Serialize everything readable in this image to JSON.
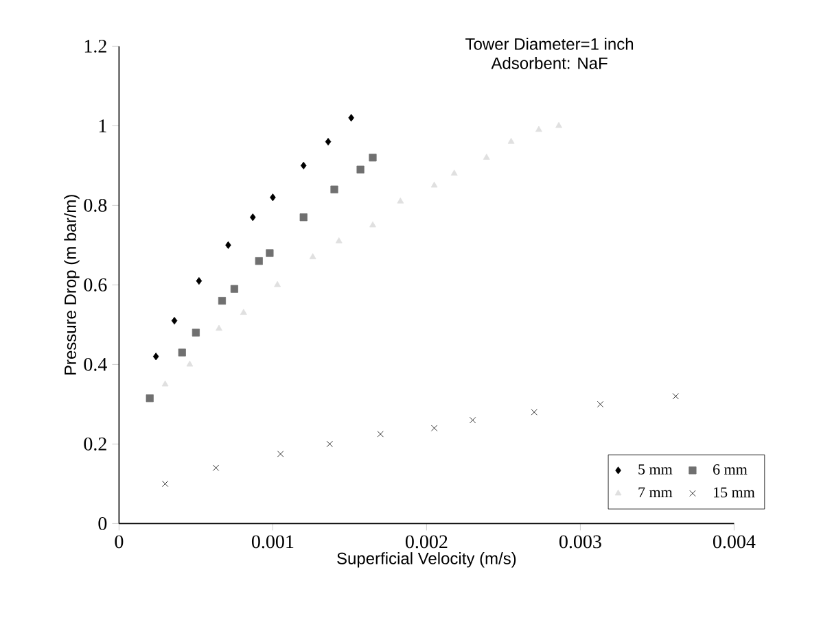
{
  "chart_data": {
    "type": "scatter",
    "title": "Tower Diameter=1 inch",
    "subtitle": "Adsorbent: NaF",
    "xlabel": "Superficial Velocity (m/s)",
    "ylabel": "Pressure Drop (m bar/m)",
    "xlim": [
      0,
      0.004
    ],
    "xticks": [
      0,
      0.001,
      0.002,
      0.003,
      0.004
    ],
    "ylim": [
      0,
      1.2
    ],
    "yticks": [
      0,
      0.2,
      0.4,
      0.6,
      0.8,
      1,
      1.2
    ],
    "grid": false,
    "legend": "bottom right",
    "series": [
      {
        "name": "5 mm",
        "color": "#000000",
        "marker": "diamond",
        "x": [
          0.00024,
          0.00036,
          0.00052,
          0.00071,
          0.00087,
          0.001,
          0.0012,
          0.00136,
          0.00151
        ],
        "values": [
          0.42,
          0.51,
          0.61,
          0.7,
          0.77,
          0.82,
          0.9,
          0.96,
          1.02
        ]
      },
      {
        "name": "6 mm",
        "color": "#707070",
        "marker": "square",
        "x": [
          0.0002,
          0.00041,
          0.0005,
          0.00067,
          0.00075,
          0.00091,
          0.00098,
          0.0012,
          0.0014,
          0.00157,
          0.00165
        ],
        "values": [
          0.315,
          0.43,
          0.48,
          0.56,
          0.59,
          0.66,
          0.68,
          0.77,
          0.84,
          0.89,
          0.92
        ]
      },
      {
        "name": "7 mm",
        "color": "#e0e0e0",
        "marker": "triangle",
        "x": [
          0.0003,
          0.00046,
          0.00065,
          0.00081,
          0.00103,
          0.00126,
          0.00143,
          0.00165,
          0.00183,
          0.00205,
          0.00218,
          0.00239,
          0.00255,
          0.00273,
          0.00286
        ],
        "values": [
          0.35,
          0.4,
          0.49,
          0.53,
          0.6,
          0.67,
          0.71,
          0.75,
          0.81,
          0.85,
          0.88,
          0.92,
          0.96,
          0.99,
          1.0
        ]
      },
      {
        "name": "15 mm",
        "color": "#000000",
        "marker": "cross",
        "x": [
          0.0003,
          0.00063,
          0.00105,
          0.00137,
          0.0017,
          0.00205,
          0.0023,
          0.0027,
          0.00313,
          0.00362
        ],
        "values": [
          0.1,
          0.14,
          0.175,
          0.2,
          0.225,
          0.24,
          0.26,
          0.28,
          0.3,
          0.32
        ]
      }
    ]
  }
}
